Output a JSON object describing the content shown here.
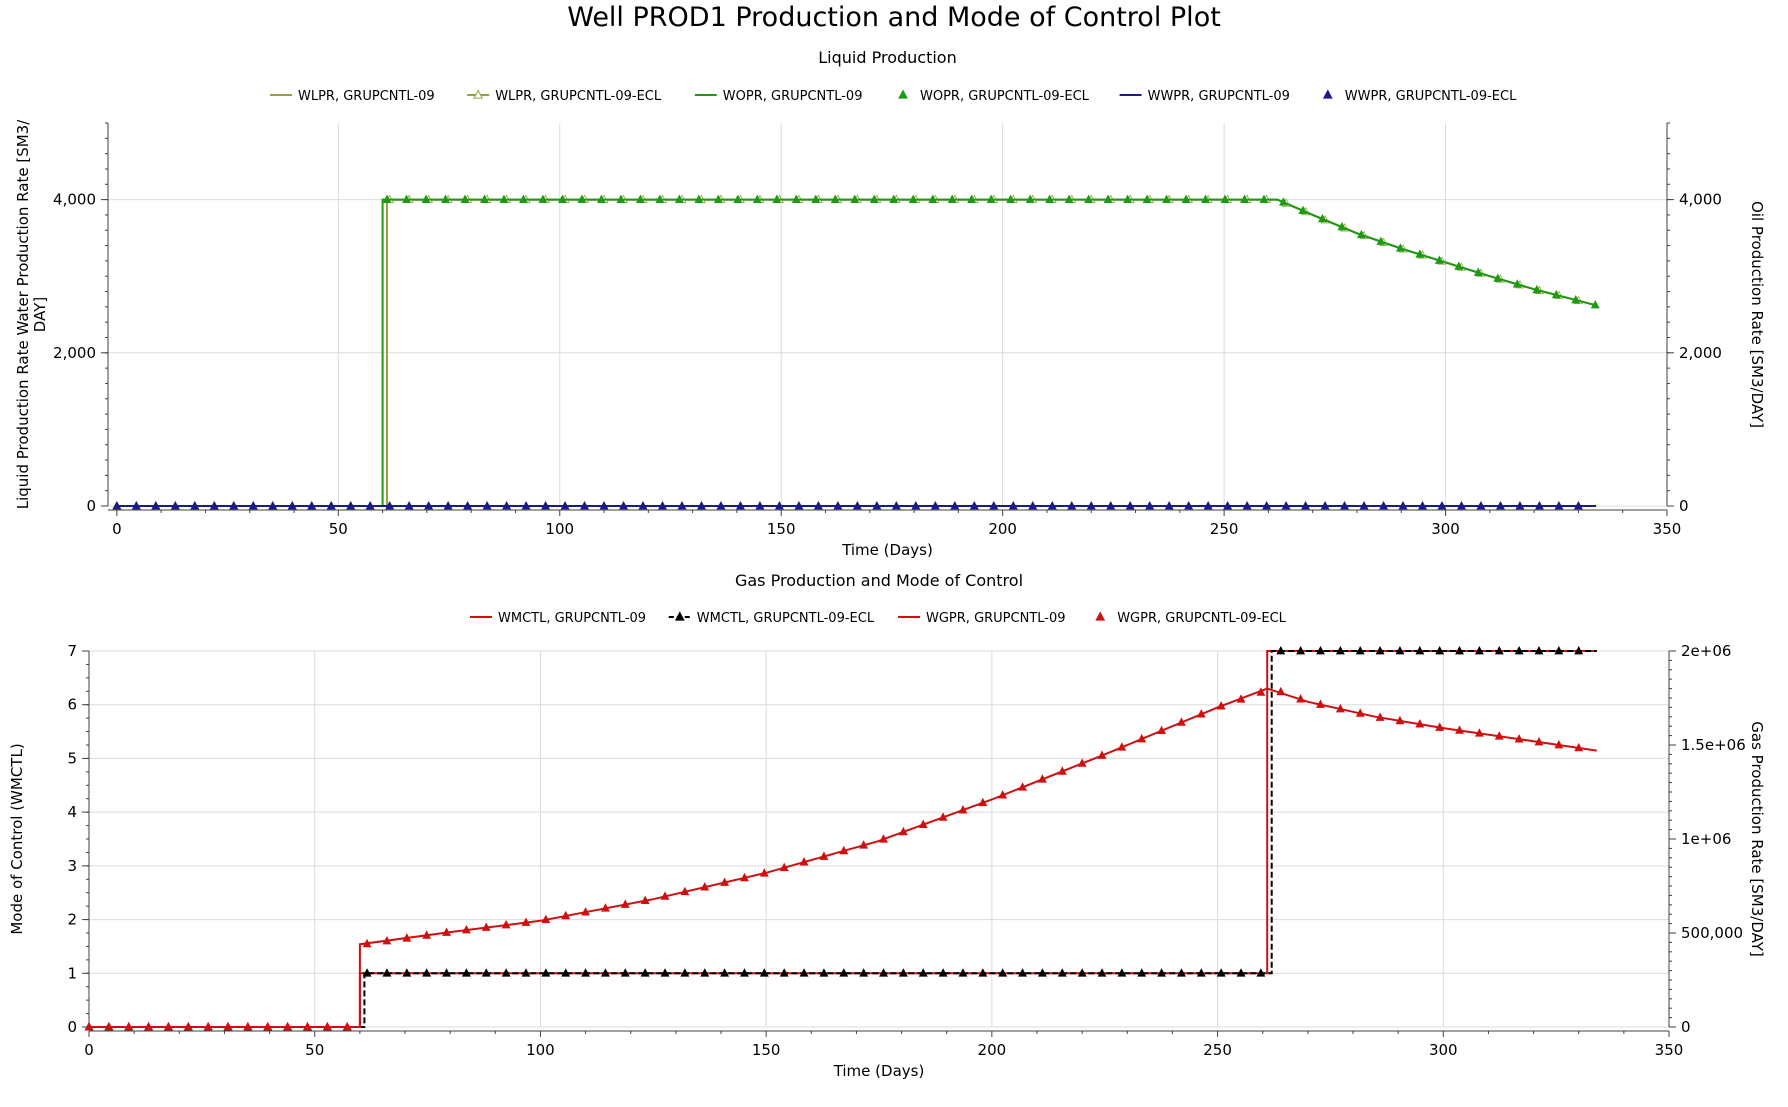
{
  "title": "Well PROD1 Production and Mode of Control Plot",
  "colors": {
    "olive": "#9aa040",
    "green": "#1e9a14",
    "navy": "#1a1a8c",
    "red": "#d01010",
    "black": "#000000",
    "grid": "#dcdcdc",
    "axis": "#404040"
  },
  "chart_data": [
    {
      "type": "line",
      "title": "Liquid Production",
      "xlabel": "Time (Days)",
      "ylabel": "Liquid Production Rate Water Production Rate [SM3/DAY]",
      "ylabel_lines": [
        "Liquid Production Rate Water Production Rate [SM3/",
        "DAY]"
      ],
      "y2label": "Oil Production Rate [SM3/DAY]",
      "xlim": [
        -2,
        350
      ],
      "ylim": [
        0,
        5000
      ],
      "y2lim": [
        0,
        5000
      ],
      "xticks": [
        0,
        50,
        100,
        150,
        200,
        250,
        300,
        350
      ],
      "xtick_labels": [
        "0",
        "50",
        "100",
        "150",
        "200",
        "250",
        "300",
        "350"
      ],
      "yticks": [
        0,
        2000,
        4000
      ],
      "ytick_labels": [
        "0",
        "2,000",
        "4,000"
      ],
      "y2ticks": [
        0,
        2000,
        4000
      ],
      "y2tick_labels": [
        "0",
        "2,000",
        "4,000"
      ],
      "grid": true,
      "legend_position": "top",
      "series": [
        {
          "name": "WLPR, GRUPCNTL-09",
          "style": "line",
          "color": "olive",
          "x": [
            0,
            61,
            61,
            262,
            270,
            280,
            290,
            300,
            310,
            320,
            334
          ],
          "y": [
            0,
            0,
            4000,
            4000,
            3800,
            3560,
            3360,
            3180,
            3000,
            2830,
            2620
          ]
        },
        {
          "name": "WLPR, GRUPCNTL-09-ECL",
          "style": "line-hollow-triangle",
          "color": "olive",
          "x": [
            0,
            61,
            61,
            262,
            270,
            280,
            290,
            300,
            310,
            320,
            334
          ],
          "y": [
            0,
            0,
            4000,
            4000,
            3800,
            3560,
            3360,
            3180,
            3000,
            2830,
            2620
          ]
        },
        {
          "name": "WOPR, GRUPCNTL-09",
          "style": "line",
          "color": "green",
          "x": [
            0,
            60,
            60,
            262,
            270,
            280,
            290,
            300,
            310,
            320,
            334
          ],
          "y": [
            0,
            0,
            4000,
            4000,
            3800,
            3560,
            3360,
            3180,
            3000,
            2830,
            2620
          ]
        },
        {
          "name": "WOPR, GRUPCNTL-09-ECL",
          "style": "triangle",
          "color": "green",
          "marker_start": 61,
          "x": [
            0,
            61,
            61,
            262,
            270,
            280,
            290,
            300,
            310,
            320,
            334
          ],
          "y": [
            0,
            0,
            4000,
            4000,
            3800,
            3560,
            3360,
            3180,
            3000,
            2830,
            2620
          ]
        },
        {
          "name": "WWPR, GRUPCNTL-09",
          "style": "line",
          "color": "navy",
          "x": [
            0,
            334
          ],
          "y": [
            0,
            0
          ]
        },
        {
          "name": "WWPR, GRUPCNTL-09-ECL",
          "style": "triangle",
          "color": "navy",
          "x": [
            0,
            334
          ],
          "y": [
            0,
            0
          ]
        }
      ]
    },
    {
      "type": "line",
      "title": "Gas Production and Mode of Control",
      "xlabel": "Time (Days)",
      "ylabel": "Mode of Control (WMCTL)",
      "y2label": "Gas Production Rate [SM3/DAY]",
      "xlim": [
        0,
        350
      ],
      "ylim": [
        0,
        7
      ],
      "y2lim": [
        0,
        2000000
      ],
      "xticks": [
        0,
        50,
        100,
        150,
        200,
        250,
        300,
        350
      ],
      "xtick_labels": [
        "0",
        "50",
        "100",
        "150",
        "200",
        "250",
        "300",
        "350"
      ],
      "yticks": [
        0,
        1,
        2,
        3,
        4,
        5,
        6,
        7
      ],
      "ytick_labels": [
        "0",
        "1",
        "2",
        "3",
        "4",
        "5",
        "6",
        "7"
      ],
      "y2ticks": [
        0,
        500000,
        1000000,
        1500000,
        2000000
      ],
      "y2tick_labels": [
        "0",
        "500,000",
        "1e+06",
        "1.5e+06",
        "2e+06"
      ],
      "grid": true,
      "legend_position": "top",
      "series": [
        {
          "name": "WMCTL, GRUPCNTL-09",
          "style": "line",
          "color": "red",
          "axis": "left",
          "x": [
            0,
            60,
            60,
            261,
            261,
            334
          ],
          "y": [
            0,
            0,
            1,
            1,
            7,
            7
          ]
        },
        {
          "name": "WMCTL, GRUPCNTL-09-ECL",
          "style": "dashed-triangle",
          "color": "black",
          "axis": "left",
          "x": [
            0,
            61,
            61,
            262,
            262,
            334
          ],
          "y": [
            0,
            0,
            1,
            1,
            7,
            7
          ]
        },
        {
          "name": "WGPR, GRUPCNTL-09",
          "style": "line",
          "color": "red",
          "axis": "right",
          "x": [
            0,
            60,
            60,
            80,
            100,
            125,
            150,
            175,
            200,
            225,
            250,
            261,
            270,
            285,
            300,
            320,
            334
          ],
          "y": [
            0,
            0,
            440000,
            505000,
            565000,
            680000,
            820000,
            990000,
            1210000,
            1450000,
            1700000,
            1800000,
            1730000,
            1650000,
            1590000,
            1520000,
            1470000
          ]
        },
        {
          "name": "WGPR, GRUPCNTL-09-ECL",
          "style": "triangle",
          "color": "red",
          "axis": "right",
          "x": [
            0,
            61,
            61,
            80,
            100,
            125,
            150,
            175,
            200,
            225,
            250,
            262,
            270,
            285,
            300,
            320,
            334
          ],
          "y": [
            0,
            0,
            440000,
            505000,
            565000,
            680000,
            820000,
            990000,
            1210000,
            1450000,
            1700000,
            1800000,
            1730000,
            1650000,
            1590000,
            1520000,
            1470000
          ]
        }
      ]
    }
  ]
}
